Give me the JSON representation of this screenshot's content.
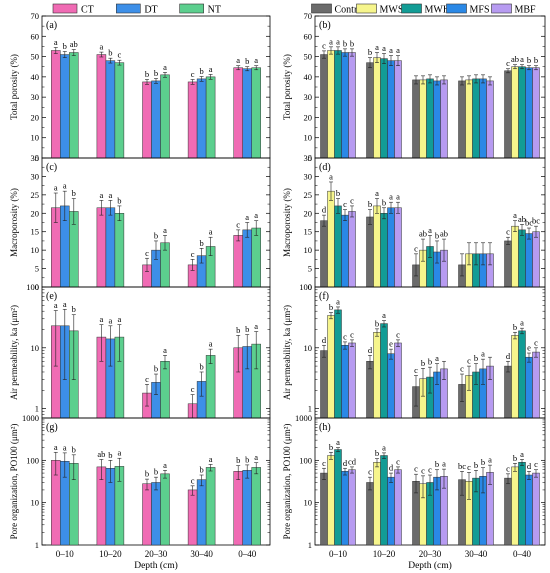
{
  "chart_data": {
    "type": "bar",
    "xlabel": "Depth (cm)",
    "categories": [
      "0–10",
      "10–20",
      "20–30",
      "30–40",
      "0–40"
    ],
    "legends": [
      {
        "entries": [
          {
            "name": "CT",
            "color": "#f06bb4"
          },
          {
            "name": "DT",
            "color": "#3d8fe8"
          },
          {
            "name": "NT",
            "color": "#5ccf8e"
          }
        ]
      },
      {
        "entries": [
          {
            "name": "Control",
            "color": "#6b6b6b"
          },
          {
            "name": "MWS",
            "color": "#f6f58c"
          },
          {
            "name": "MWH",
            "color": "#129c95"
          },
          {
            "name": "MFS",
            "color": "#2a88e6"
          },
          {
            "name": "MBF",
            "color": "#b79bf1"
          }
        ]
      }
    ],
    "panels": [
      {
        "label": "(a)",
        "ylabel": "Total porosity (%)",
        "scale": "linear",
        "ylim": [
          0,
          70
        ],
        "yticks": [
          "0",
          "10",
          "20",
          "30",
          "40",
          "50",
          "60",
          "70"
        ],
        "legend": 0,
        "values": [
          [
            53,
            51,
            52
          ],
          [
            51,
            48,
            47
          ],
          [
            37.5,
            38,
            41
          ],
          [
            37.5,
            39,
            40
          ],
          [
            44.5,
            44,
            44.5
          ]
        ],
        "errors": [
          [
            1.5,
            1.5,
            1.5
          ],
          [
            1.2,
            1.2,
            1.2
          ],
          [
            1.2,
            1.2,
            1.2
          ],
          [
            1.2,
            1.2,
            1.2
          ],
          [
            1,
            1,
            1
          ]
        ],
        "letters": [
          [
            "a",
            "b",
            "ab"
          ],
          [
            "a",
            "b",
            "c"
          ],
          [
            "b",
            "b",
            "a"
          ],
          [
            "c",
            "b",
            "a"
          ],
          [
            "a",
            "b",
            "a"
          ]
        ]
      },
      {
        "label": "(b)",
        "ylabel": "Total porosity (%)",
        "scale": "linear",
        "ylim": [
          0,
          70
        ],
        "yticks": [
          "0",
          "10",
          "20",
          "30",
          "40",
          "50",
          "60",
          "70"
        ],
        "legend": 1,
        "values": [
          [
            51,
            53,
            53,
            52,
            52
          ],
          [
            47,
            49.5,
            49,
            48,
            48
          ],
          [
            38.5,
            38.5,
            39,
            38,
            38.5
          ],
          [
            38,
            38.5,
            39,
            39,
            38
          ],
          [
            43,
            45,
            45,
            44.5,
            44.5
          ]
        ],
        "errors": [
          [
            1.8,
            1.8,
            1.8,
            1.8,
            1.8
          ],
          [
            2.5,
            2.5,
            2.5,
            2.5,
            2.5
          ],
          [
            2,
            2,
            2,
            2,
            2
          ],
          [
            2,
            2,
            2,
            2,
            2
          ],
          [
            1,
            1,
            1,
            1,
            1
          ]
        ],
        "letters": [
          [
            "c",
            "a",
            "a",
            "b",
            "b"
          ],
          [
            "b",
            "a",
            "a",
            "a",
            "a"
          ],
          [
            "",
            "",
            "",
            "",
            ""
          ],
          [
            "",
            "",
            "",
            "",
            ""
          ],
          [
            "c",
            "ab",
            "a",
            "b",
            "b"
          ]
        ]
      },
      {
        "label": "(c)",
        "ylabel": "Macroporosity (%)",
        "scale": "linear",
        "ylim": [
          0,
          35
        ],
        "yticks": [
          "0",
          "5",
          "10",
          "15",
          "20",
          "25",
          "30",
          "35"
        ],
        "legend": 0,
        "values": [
          [
            21.5,
            22,
            20.5
          ],
          [
            21.5,
            21.5,
            20
          ],
          [
            6,
            10,
            12
          ],
          [
            6,
            8.5,
            11
          ],
          [
            14,
            15.5,
            16
          ]
        ],
        "errors": [
          [
            4,
            4,
            3.5
          ],
          [
            2,
            2,
            2
          ],
          [
            1.8,
            2.5,
            2
          ],
          [
            1.5,
            2,
            2.5
          ],
          [
            1.5,
            2,
            2
          ]
        ],
        "letters": [
          [
            "a",
            "a",
            "b"
          ],
          [
            "a",
            "a",
            "b"
          ],
          [
            "c",
            "b",
            "a"
          ],
          [
            "c",
            "b",
            "a"
          ],
          [
            "c",
            "a",
            "a"
          ]
        ]
      },
      {
        "label": "(d)",
        "ylabel": "Macroporosity (%)",
        "scale": "linear",
        "ylim": [
          0,
          35
        ],
        "yticks": [
          "0",
          "5",
          "10",
          "15",
          "20",
          "25",
          "30",
          "35"
        ],
        "legend": 1,
        "values": [
          [
            18,
            26,
            22,
            19.5,
            20.5
          ],
          [
            19,
            22,
            20,
            21.5,
            21.5
          ],
          [
            6,
            10,
            11,
            9.5,
            10
          ],
          [
            6,
            9,
            9,
            9,
            9
          ],
          [
            12.5,
            16.5,
            15.5,
            14.5,
            15
          ]
        ],
        "errors": [
          [
            1.5,
            2.5,
            2,
            1.5,
            1.5
          ],
          [
            2,
            2,
            1.5,
            1.5,
            1.5
          ],
          [
            3,
            3,
            3,
            3,
            3
          ],
          [
            3,
            3,
            3,
            3,
            3
          ],
          [
            1,
            1.5,
            1.5,
            1.5,
            1.5
          ]
        ],
        "letters": [
          [
            "d",
            "a",
            "b",
            "c",
            "c"
          ],
          [
            "b",
            "a",
            "b",
            "a",
            "a"
          ],
          [
            "c",
            "ab",
            "a",
            "b",
            "ab"
          ],
          [
            "",
            "",
            "",
            "",
            ""
          ],
          [
            "c",
            "a",
            "ab",
            "bc",
            "bc"
          ]
        ]
      },
      {
        "label": "(e)",
        "ylabel": "Air permeability, ka (μm²)",
        "scale": "log",
        "ylim": [
          0.7,
          100
        ],
        "yticks": [
          "1",
          "10",
          "100"
        ],
        "legend": 0,
        "values": [
          [
            23,
            23,
            19
          ],
          [
            15,
            14,
            15
          ],
          [
            1.8,
            2.7,
            6
          ],
          [
            1.2,
            2.8,
            7.5
          ],
          [
            10,
            10.5,
            11.5
          ]
        ],
        "errors": [
          [
            18,
            20,
            16
          ],
          [
            9,
            9,
            9
          ],
          [
            0.7,
            1,
            1.5
          ],
          [
            0.5,
            1.2,
            2
          ],
          [
            6,
            6,
            7
          ]
        ],
        "letters": [
          [
            "a",
            "a",
            "b"
          ],
          [
            "a",
            "a",
            "a"
          ],
          [
            "c",
            "b",
            "a"
          ],
          [
            "c",
            "b",
            "a"
          ],
          [
            "b",
            "b",
            "a"
          ]
        ]
      },
      {
        "label": "(f)",
        "ylabel": "Air permeability, ka (μm²)",
        "scale": "log",
        "ylim": [
          0.7,
          100
        ],
        "yticks": [
          "1",
          "10",
          "100"
        ],
        "legend": 1,
        "values": [
          [
            9,
            34,
            42,
            11,
            12
          ],
          [
            6,
            18,
            25,
            8,
            12
          ],
          [
            2.3,
            3.1,
            3.3,
            4,
            4.5
          ],
          [
            2.5,
            3.5,
            4,
            4.5,
            5
          ],
          [
            5,
            16,
            19,
            7,
            8.5
          ]
        ],
        "errors": [
          [
            2,
            4,
            5,
            1.5,
            1.5
          ],
          [
            1.5,
            2.5,
            3,
            1.5,
            1.5
          ],
          [
            1.2,
            1.5,
            1.5,
            1.5,
            1.5
          ],
          [
            1.2,
            1.5,
            1.5,
            2,
            2
          ],
          [
            1,
            2,
            2,
            1.2,
            1.5
          ]
        ],
        "letters": [
          [
            "d",
            "b",
            "a",
            "c",
            "c"
          ],
          [
            "d",
            "b",
            "a",
            "e",
            "c"
          ],
          [
            "c",
            "b",
            "b",
            "a",
            ""
          ],
          [
            "c",
            "c",
            "b",
            "a",
            ""
          ],
          [
            "d",
            "b",
            "a",
            "e",
            "c"
          ]
        ]
      },
      {
        "label": "(g)",
        "ylabel": "Pore organization, PO100 (μm²)",
        "scale": "log",
        "ylim": [
          1,
          1000
        ],
        "yticks": [
          "1",
          "10",
          "100",
          "1000"
        ],
        "legend": 0,
        "values": [
          [
            100,
            95,
            85
          ],
          [
            70,
            65,
            72
          ],
          [
            28,
            30,
            48
          ],
          [
            20,
            35,
            68
          ],
          [
            55,
            58,
            68
          ]
        ],
        "errors": [
          [
            55,
            55,
            50
          ],
          [
            35,
            35,
            40
          ],
          [
            8,
            10,
            10
          ],
          [
            5,
            10,
            12
          ],
          [
            20,
            20,
            20
          ]
        ],
        "letters": [
          [
            "a",
            "a",
            "b"
          ],
          [
            "ab",
            "b",
            "a"
          ],
          [
            "b",
            "b",
            "a"
          ],
          [
            "c",
            "b",
            "a"
          ],
          [
            "b",
            "b",
            "a"
          ]
        ]
      },
      {
        "label": "(h)",
        "ylabel": "Pore organization, PO100 (μm²)",
        "scale": "log",
        "ylim": [
          1,
          1000
        ],
        "yticks": [
          "1",
          "10",
          "100",
          "1000"
        ],
        "legend": 1,
        "values": [
          [
            50,
            130,
            180,
            55,
            60
          ],
          [
            30,
            90,
            130,
            40,
            60
          ],
          [
            32,
            28,
            30,
            40,
            42
          ],
          [
            35,
            32,
            38,
            42,
            52
          ],
          [
            38,
            70,
            90,
            45,
            50
          ]
        ],
        "errors": [
          [
            15,
            25,
            20,
            10,
            10
          ],
          [
            10,
            20,
            20,
            10,
            10
          ],
          [
            15,
            15,
            15,
            20,
            20
          ],
          [
            20,
            20,
            20,
            25,
            25
          ],
          [
            10,
            15,
            15,
            10,
            10
          ]
        ],
        "letters": [
          [
            "c",
            "b",
            "a",
            "d",
            "cd"
          ],
          [
            "c",
            "b",
            "a",
            "d",
            "c"
          ],
          [
            "c",
            "c",
            "c",
            "b",
            "a"
          ],
          [
            "bc",
            "c",
            "b",
            "b",
            "a"
          ],
          [
            "c",
            "b",
            "a",
            "d",
            "c"
          ]
        ]
      }
    ]
  }
}
